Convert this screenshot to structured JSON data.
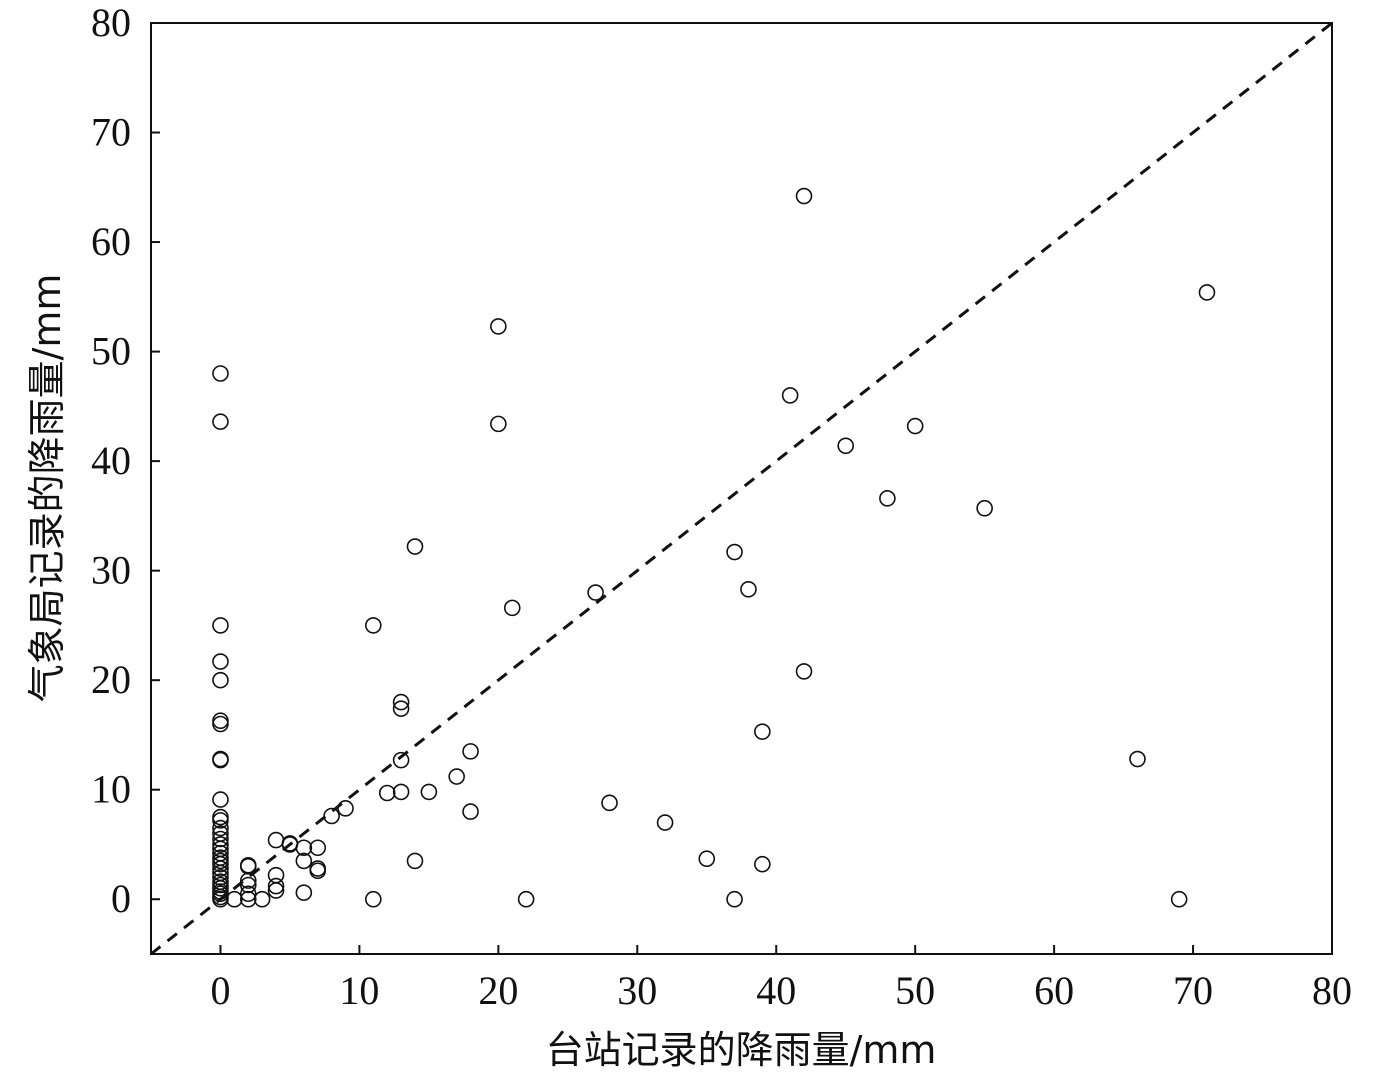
{
  "chart_data": {
    "type": "scatter",
    "title": "",
    "xlabel": "台站记录的降雨量/mm",
    "ylabel": "气象局记录的降雨量/mm",
    "xlim": [
      -5,
      80
    ],
    "ylim": [
      -5,
      80
    ],
    "xticks": [
      0,
      10,
      20,
      30,
      40,
      50,
      60,
      70,
      80
    ],
    "yticks": [
      0,
      10,
      20,
      30,
      40,
      50,
      60,
      70,
      80
    ],
    "grid": false,
    "reference_line": {
      "style": "dashed",
      "color": "#111111",
      "from": [
        -5,
        -5
      ],
      "to": [
        80,
        80
      ]
    },
    "marker": {
      "shape": "open-circle",
      "color": "#111111"
    },
    "points": [
      [
        0,
        48.0
      ],
      [
        0,
        43.6
      ],
      [
        0,
        25.0
      ],
      [
        0,
        21.7
      ],
      [
        0,
        20.0
      ],
      [
        0,
        16.3
      ],
      [
        0,
        16.0
      ],
      [
        0,
        12.8
      ],
      [
        0,
        12.7
      ],
      [
        0,
        9.1
      ],
      [
        0,
        7.5
      ],
      [
        0,
        7.2
      ],
      [
        0,
        6.5
      ],
      [
        0,
        6.0
      ],
      [
        0,
        5.5
      ],
      [
        0,
        5.0
      ],
      [
        0,
        4.6
      ],
      [
        0,
        4.2
      ],
      [
        0,
        3.8
      ],
      [
        0,
        3.5
      ],
      [
        0,
        3.2
      ],
      [
        0,
        2.8
      ],
      [
        0,
        2.4
      ],
      [
        0,
        2.0
      ],
      [
        0,
        1.6
      ],
      [
        0,
        1.3
      ],
      [
        0,
        1.0
      ],
      [
        0,
        0.7
      ],
      [
        0,
        0.5
      ],
      [
        0,
        0.2
      ],
      [
        0,
        0.0
      ],
      [
        1,
        0.0
      ],
      [
        2,
        3.1
      ],
      [
        2,
        3.0
      ],
      [
        2,
        1.7
      ],
      [
        2,
        1.3
      ],
      [
        2,
        0.5
      ],
      [
        2,
        0.0
      ],
      [
        3,
        0.0
      ],
      [
        4,
        5.4
      ],
      [
        4,
        2.2
      ],
      [
        4,
        1.2
      ],
      [
        4,
        0.8
      ],
      [
        5,
        5.1
      ],
      [
        5,
        5.0
      ],
      [
        6,
        4.7
      ],
      [
        6,
        3.5
      ],
      [
        6,
        0.6
      ],
      [
        7,
        4.7
      ],
      [
        7,
        2.8
      ],
      [
        7,
        2.6
      ],
      [
        8,
        7.6
      ],
      [
        9,
        8.3
      ],
      [
        11,
        25.0
      ],
      [
        11,
        0.0
      ],
      [
        12,
        9.7
      ],
      [
        13,
        18.0
      ],
      [
        13,
        17.4
      ],
      [
        13,
        12.7
      ],
      [
        13,
        9.8
      ],
      [
        14,
        32.2
      ],
      [
        14,
        3.5
      ],
      [
        15,
        9.8
      ],
      [
        17,
        11.2
      ],
      [
        18,
        13.5
      ],
      [
        18,
        8.0
      ],
      [
        20,
        52.3
      ],
      [
        20,
        43.4
      ],
      [
        21,
        26.6
      ],
      [
        22,
        0.0
      ],
      [
        27,
        28.0
      ],
      [
        28,
        8.8
      ],
      [
        32,
        7.0
      ],
      [
        35,
        3.7
      ],
      [
        37,
        31.7
      ],
      [
        37,
        0.0
      ],
      [
        38,
        28.3
      ],
      [
        39,
        15.3
      ],
      [
        39,
        3.2
      ],
      [
        41,
        46.0
      ],
      [
        42,
        64.2
      ],
      [
        42,
        20.8
      ],
      [
        45,
        41.4
      ],
      [
        48,
        36.6
      ],
      [
        50,
        43.2
      ],
      [
        55,
        35.7
      ],
      [
        66,
        12.8
      ],
      [
        69,
        0.0
      ],
      [
        71,
        55.4
      ]
    ]
  }
}
